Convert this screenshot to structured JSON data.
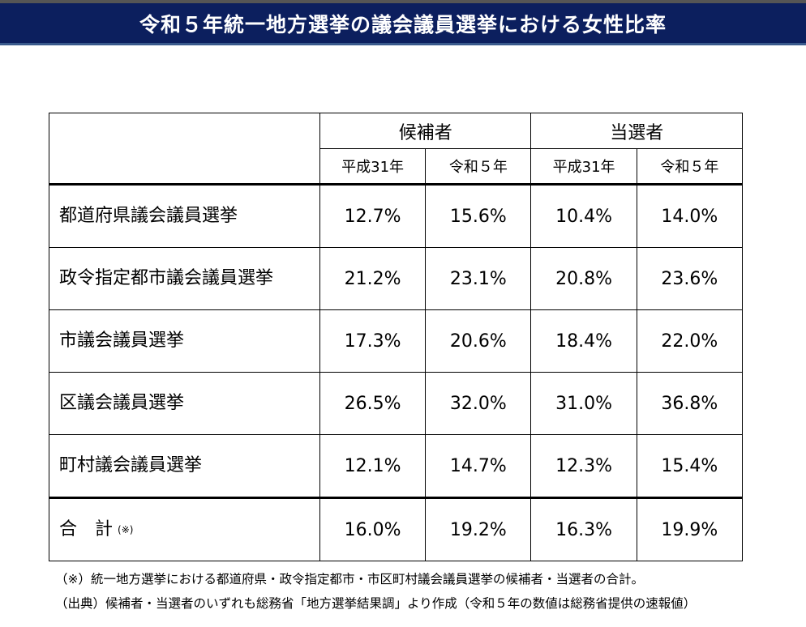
{
  "title": "令和５年統一地方選挙の議会議員選挙における女性比率",
  "table": {
    "groups": [
      "候補者",
      "当選者"
    ],
    "years": [
      "平成31年",
      "令和５年",
      "平成31年",
      "令和５年"
    ],
    "rows": [
      {
        "label": "都道府県議会議員選挙",
        "values": [
          "12.7%",
          "15.6%",
          "10.4%",
          "14.0%"
        ]
      },
      {
        "label": "政令指定都市議会議員選挙",
        "values": [
          "21.2%",
          "23.1%",
          "20.8%",
          "23.6%"
        ]
      },
      {
        "label": "市議会議員選挙",
        "values": [
          "17.3%",
          "20.6%",
          "18.4%",
          "22.0%"
        ]
      },
      {
        "label": "区議会議員選挙",
        "values": [
          "26.5%",
          "32.0%",
          "31.0%",
          "36.8%"
        ]
      },
      {
        "label": "町村議会議員選挙",
        "values": [
          "12.1%",
          "14.7%",
          "12.3%",
          "15.4%"
        ]
      }
    ],
    "total": {
      "label": "合　計",
      "mark": "(※)",
      "values": [
        "16.0%",
        "19.2%",
        "16.3%",
        "19.9%"
      ]
    }
  },
  "notes": [
    "（※）統一地方選挙における都道府県・政令指定都市・市区町村議会議員選挙の候補者・当選者の合計。",
    "（出典）候補者・当選者のいずれも総務省「地方選挙結果調」より作成（令和５年の数値は総務省提供の速報値）"
  ]
}
